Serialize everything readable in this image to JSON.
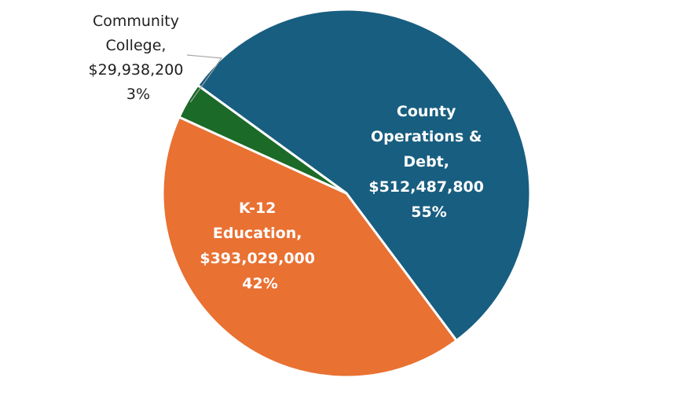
{
  "chart_data": {
    "type": "pie",
    "title": "",
    "series": [
      {
        "label_lines": [
          "County",
          "Operations &",
          "Debt,",
          "$512,487,800",
          "55%"
        ],
        "value": 512487800,
        "percent": "55%",
        "color": "#185e80"
      },
      {
        "label_lines": [
          "K-12",
          "Education,",
          "$393,029,000",
          "42%"
        ],
        "value": 393029000,
        "percent": "42%",
        "color": "#e97132"
      },
      {
        "label_lines": [
          "Community",
          "College,",
          "$29,938,200",
          "3%"
        ],
        "value": 29938200,
        "percent": "3%",
        "color": "#1b6a28"
      }
    ],
    "legend": "none",
    "data_labels": "category, value, percent"
  }
}
